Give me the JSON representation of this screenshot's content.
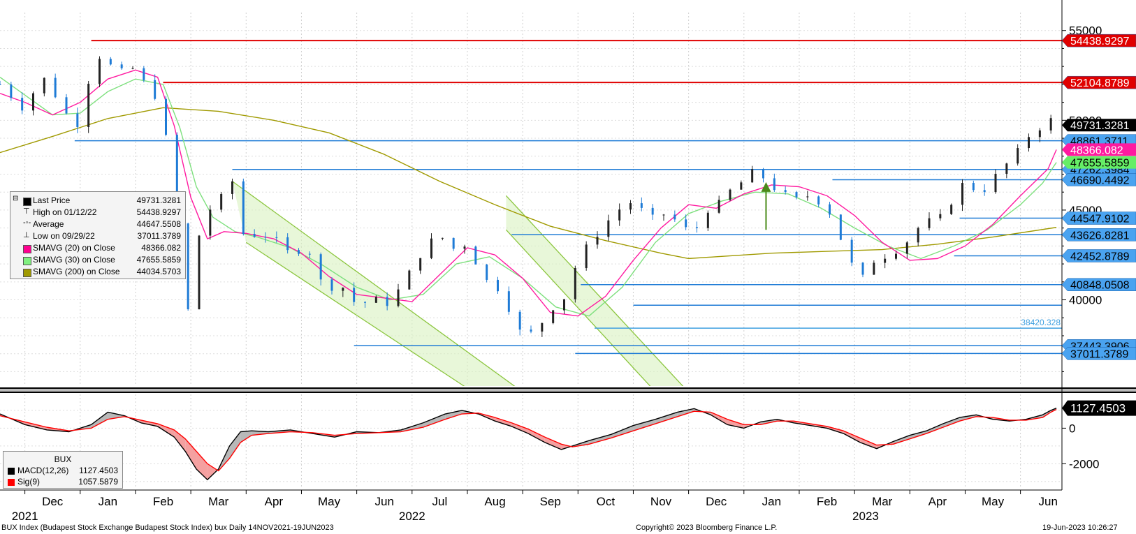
{
  "footer": {
    "left": "BUX Index (Budapest Stock Exchange Budapest Stock Index) bux  Daily 14NOV2021-19JUN2023",
    "center": "Copyright© 2023 Bloomberg Finance L.P.",
    "right": "19-Jun-2023 10:26:27"
  },
  "legend": [
    {
      "label": "Last Price",
      "value": "49731.3281",
      "swatch": "#000000",
      "marker": "box"
    },
    {
      "label": "High on 01/12/22",
      "value": "54438.9297",
      "swatch": "",
      "marker": "high"
    },
    {
      "label": "Average",
      "value": "44647.5508",
      "swatch": "",
      "marker": "avg"
    },
    {
      "label": "Low on 09/29/22",
      "value": "37011.3789",
      "swatch": "",
      "marker": "low"
    },
    {
      "label": "SMAVG (20)  on Close",
      "value": "48366.082",
      "swatch": "#ff0090",
      "marker": "box"
    },
    {
      "label": "SMAVG (30)  on Close",
      "value": "47655.5859",
      "swatch": "#80f080",
      "marker": "box"
    },
    {
      "label": "SMAVG (200)  on Close",
      "value": "44034.5703",
      "swatch": "#a09a00",
      "marker": "box"
    }
  ],
  "macd_legend": {
    "title": "BUX",
    "items": [
      {
        "label": "MACD(12,26)",
        "value": "1127.4503",
        "swatch": "#000000"
      },
      {
        "label": "Sig(9)",
        "value": "1057.5879",
        "swatch": "#ff0000"
      }
    ]
  },
  "chart_data": [
    {
      "type": "candlestick",
      "title": "",
      "x_labels": [
        "Dec",
        "Jan",
        "Feb",
        "Mar",
        "Apr",
        "May",
        "Jun",
        "Jul",
        "Aug",
        "Sep",
        "Oct",
        "Nov",
        "Dec",
        "Jan",
        "Feb",
        "Mar",
        "Apr",
        "May",
        "Jun"
      ],
      "x_label_pos": [
        0.5,
        1.5,
        2.5,
        3.5,
        4.5,
        5.5,
        6.5,
        7.5,
        8.5,
        9.5,
        10.5,
        11.5,
        12.5,
        13.5,
        14.5,
        15.5,
        16.5,
        17.5,
        18.5
      ],
      "year_labels": [
        {
          "label": "2021",
          "pos": 0.0
        },
        {
          "label": "2022",
          "pos": 7.0
        },
        {
          "label": "2023",
          "pos": 15.2
        }
      ],
      "x_range": [
        -0.45,
        18.75
      ],
      "y_ticks": [
        40000,
        45000,
        50000,
        55000
      ],
      "y_tick_labels": [
        "40000",
        "45000",
        "50000",
        "55000"
      ],
      "ylim": [
        35200,
        56000
      ],
      "grid": true,
      "close_series": {
        "x": [
          -0.45,
          0.0,
          0.3,
          0.6,
          0.9,
          1.0,
          1.2,
          1.4,
          1.5,
          1.7,
          1.9,
          2.1,
          2.3,
          2.45,
          2.6,
          2.75,
          2.85,
          2.95,
          3.05,
          3.15,
          3.3,
          3.45,
          3.6,
          3.75,
          3.9,
          4.05,
          4.2,
          4.5,
          4.8,
          5.1,
          5.4,
          5.7,
          6.0,
          6.3,
          6.6,
          6.9,
          7.2,
          7.5,
          7.7,
          7.9,
          8.1,
          8.3,
          8.5,
          8.7,
          8.9,
          9.1,
          9.3,
          9.5,
          9.7,
          9.85,
          10.0,
          10.2,
          10.4,
          10.6,
          10.8,
          11.0,
          11.2,
          11.4,
          11.6,
          11.8,
          12.0,
          12.2,
          12.4,
          12.6,
          12.8,
          13.0,
          13.2,
          13.4,
          13.6,
          13.8,
          14.0,
          14.2,
          14.4,
          14.6,
          14.8,
          15.0,
          15.1,
          15.25,
          15.4,
          15.6,
          15.8,
          16.0,
          16.2,
          16.4,
          16.6,
          16.8,
          17.0,
          17.2,
          17.4,
          17.6,
          17.8,
          18.0,
          18.2,
          18.4,
          18.55,
          18.65
        ],
        "y": [
          52000,
          50600,
          52500,
          51200,
          49500,
          50200,
          52900,
          53800,
          53200,
          52500,
          53100,
          52200,
          51800,
          50600,
          48200,
          44200,
          40500,
          39400,
          41200,
          43600,
          45200,
          44800,
          46100,
          46600,
          43900,
          43300,
          43800,
          43400,
          42500,
          43100,
          40600,
          40900,
          39700,
          40000,
          39800,
          41200,
          42800,
          43700,
          42700,
          43300,
          42500,
          41100,
          40900,
          40000,
          38300,
          38000,
          38500,
          39600,
          39700,
          41000,
          42200,
          43100,
          43900,
          44600,
          45200,
          45500,
          44800,
          44400,
          44900,
          44300,
          43800,
          44100,
          45400,
          45300,
          46300,
          46600,
          47200,
          46700,
          46100,
          45700,
          45500,
          45900,
          45400,
          44700,
          43000,
          41600,
          40900,
          41800,
          42400,
          42500,
          42900,
          43400,
          44200,
          44400,
          44600,
          45800,
          46600,
          46100,
          46200,
          47100,
          47700,
          48400,
          49400,
          49700,
          50000,
          49730
        ]
      },
      "sma20": {
        "x": [
          -0.45,
          0.0,
          0.5,
          1.0,
          1.5,
          2.0,
          2.4,
          2.7,
          3.0,
          3.3,
          3.6,
          4.0,
          4.5,
          5.0,
          5.5,
          6.0,
          6.5,
          7.0,
          7.5,
          8.0,
          8.5,
          9.0,
          9.5,
          10.0,
          10.5,
          11.0,
          11.5,
          12.0,
          12.5,
          13.0,
          13.5,
          14.0,
          14.5,
          15.0,
          15.5,
          16.0,
          16.5,
          17.0,
          17.5,
          18.0,
          18.5,
          18.65
        ],
        "y": [
          51500,
          51000,
          50300,
          51000,
          52300,
          52800,
          52400,
          49700,
          45700,
          43400,
          43800,
          43700,
          43400,
          42600,
          41300,
          40300,
          40100,
          39900,
          41400,
          42900,
          42500,
          41200,
          39300,
          39100,
          40200,
          42200,
          44000,
          45300,
          45100,
          45900,
          46400,
          46300,
          45800,
          44700,
          43200,
          42200,
          42300,
          43000,
          44200,
          45800,
          47300,
          48366
        ]
      },
      "sma30": {
        "x": [
          -0.45,
          0.5,
          1.0,
          1.5,
          2.0,
          2.5,
          2.8,
          3.1,
          3.4,
          3.8,
          4.2,
          4.8,
          5.4,
          6.0,
          6.6,
          7.2,
          7.8,
          8.4,
          9.0,
          9.6,
          10.2,
          10.8,
          11.4,
          12.0,
          12.6,
          13.2,
          13.8,
          14.4,
          15.0,
          15.6,
          16.2,
          16.8,
          17.4,
          18.0,
          18.4,
          18.65
        ],
        "y": [
          52400,
          50300,
          50400,
          51600,
          52300,
          52000,
          49600,
          46300,
          44600,
          43800,
          43500,
          42900,
          41900,
          40700,
          40000,
          40300,
          42000,
          42400,
          41200,
          39600,
          39100,
          40700,
          43200,
          44800,
          45500,
          46000,
          45900,
          45100,
          44000,
          43000,
          42300,
          43000,
          43900,
          45300,
          46500,
          47656
        ]
      },
      "sma200": {
        "x": [
          -0.45,
          0.5,
          1.5,
          2.5,
          3.5,
          4.5,
          5.5,
          6.5,
          7.5,
          8.5,
          9.5,
          10.5,
          11.5,
          12.0,
          12.5,
          13.5,
          14.5,
          15.5,
          16.5,
          17.5,
          18.65
        ],
        "y": [
          48200,
          49100,
          50100,
          50700,
          50500,
          50000,
          49300,
          48100,
          46600,
          45300,
          44100,
          43300,
          42600,
          42300,
          42400,
          42600,
          42700,
          42800,
          43100,
          43500,
          44035
        ]
      },
      "horizontal_levels": [
        {
          "value": 54438.9297,
          "label": "54438.9297",
          "color": "#e00000",
          "from_x": 1.2
        },
        {
          "value": 52104.8789,
          "label": "52104.8789",
          "color": "#e00000",
          "from_x": 2.5
        },
        {
          "value": 48861.3711,
          "label": "48861.3711",
          "color": "#1e7bd6",
          "from_x": 0.9
        },
        {
          "value": 47262.3984,
          "label": "47262.3984",
          "color": "#1e7bd6",
          "from_x": 3.75
        },
        {
          "value": 46690.4492,
          "label": "46690.4492",
          "color": "#1e7bd6",
          "from_x": 14.6
        },
        {
          "value": 44547.9102,
          "label": "44547.9102",
          "color": "#1e7bd6",
          "from_x": 16.9
        },
        {
          "value": 43626.8281,
          "label": "43626.8281",
          "color": "#1e7bd6",
          "from_x": 8.8
        },
        {
          "value": 42452.8789,
          "label": "42452.8789",
          "color": "#1e7bd6",
          "from_x": 16.8
        },
        {
          "value": 40848.0508,
          "label": "40848.0508",
          "color": "#1e7bd6",
          "from_x": 10.05
        },
        {
          "value": 39700,
          "label": "",
          "color": "#1e7bd6",
          "from_x": 11.0
        },
        {
          "value": 38420.328,
          "label": "38420.328",
          "color": "#40a0e0",
          "from_x": 10.3,
          "plain": true
        },
        {
          "value": 37443.3906,
          "label": "37443.3906",
          "color": "#1e7bd6",
          "from_x": 5.95
        },
        {
          "value": 37011.3789,
          "label": "37011.3789",
          "color": "#1e7bd6",
          "from_x": 9.95
        }
      ],
      "price_tags": [
        {
          "value": 49731.3281,
          "label": "49731.3281",
          "bg": "#000000",
          "fg": "#ffffff"
        },
        {
          "value": 48366.082,
          "label": "48366.082",
          "bg": "#ff1aa0",
          "fg": "#ffffff"
        },
        {
          "value": 47655.5859,
          "label": "47655.5859",
          "bg": "#66ee66",
          "fg": "#000000"
        }
      ],
      "channels": [
        {
          "upper": [
            [
              3.75,
              46600
            ],
            [
              10.55,
              31400
            ]
          ],
          "lower": [
            [
              4.0,
              43200
            ],
            [
              10.3,
              30400
            ]
          ]
        },
        {
          "upper": [
            [
              8.7,
              45800
            ],
            [
              12.95,
              31700
            ]
          ],
          "lower": [
            [
              8.7,
              43900
            ],
            [
              12.35,
              31700
            ]
          ]
        }
      ],
      "arrow": {
        "x": 13.4,
        "from": 43900,
        "to": 46400,
        "color": "#4a8a1a"
      }
    },
    {
      "type": "line",
      "title": "BUX",
      "y_ticks": [
        0,
        -2000
      ],
      "y_tick_labels": [
        "0",
        "-2000"
      ],
      "ylim": [
        -3400,
        1900
      ],
      "series": [
        {
          "name": "MACD(12,26)",
          "color": "#000000",
          "x": [
            -0.45,
            0.0,
            0.4,
            0.8,
            1.2,
            1.5,
            1.8,
            2.1,
            2.4,
            2.7,
            2.9,
            3.1,
            3.3,
            3.5,
            3.7,
            3.9,
            4.1,
            4.4,
            4.8,
            5.2,
            5.6,
            6.0,
            6.4,
            6.8,
            7.2,
            7.6,
            7.9,
            8.2,
            8.5,
            8.8,
            9.1,
            9.4,
            9.7,
            9.9,
            10.2,
            10.6,
            11.0,
            11.4,
            11.8,
            12.1,
            12.4,
            12.7,
            13.0,
            13.3,
            13.6,
            13.9,
            14.2,
            14.5,
            14.8,
            15.1,
            15.4,
            15.7,
            16.0,
            16.3,
            16.6,
            16.9,
            17.2,
            17.5,
            17.8,
            18.1,
            18.4,
            18.55,
            18.65
          ],
          "y": [
            800,
            200,
            -100,
            -200,
            200,
            900,
            700,
            300,
            100,
            -500,
            -1300,
            -2300,
            -2900,
            -2300,
            -1000,
            -200,
            -150,
            -200,
            -100,
            -300,
            -500,
            -200,
            -250,
            -100,
            300,
            800,
            1000,
            800,
            400,
            100,
            -300,
            -800,
            -1200,
            -1000,
            -700,
            -350,
            150,
            500,
            900,
            1100,
            750,
            200,
            0,
            350,
            500,
            300,
            150,
            0,
            -300,
            -800,
            -1150,
            -750,
            -400,
            -150,
            250,
            600,
            750,
            500,
            400,
            500,
            750,
            1000,
            1127
          ]
        },
        {
          "name": "Sig(9)",
          "color": "#ff0000",
          "x": [
            -0.45,
            0.0,
            0.4,
            0.8,
            1.2,
            1.5,
            1.8,
            2.1,
            2.4,
            2.7,
            2.9,
            3.1,
            3.3,
            3.5,
            3.7,
            3.9,
            4.1,
            4.4,
            4.8,
            5.2,
            5.6,
            6.0,
            6.4,
            6.8,
            7.2,
            7.6,
            7.9,
            8.2,
            8.5,
            8.8,
            9.1,
            9.4,
            9.7,
            9.9,
            10.2,
            10.6,
            11.0,
            11.4,
            11.8,
            12.1,
            12.4,
            12.7,
            13.0,
            13.3,
            13.6,
            13.9,
            14.2,
            14.5,
            14.8,
            15.1,
            15.4,
            15.7,
            16.0,
            16.3,
            16.6,
            16.9,
            17.2,
            17.5,
            17.8,
            18.1,
            18.4,
            18.55,
            18.65
          ],
          "y": [
            700,
            350,
            50,
            -150,
            0,
            500,
            650,
            450,
            250,
            -100,
            -600,
            -1300,
            -2000,
            -2400,
            -1700,
            -800,
            -400,
            -300,
            -200,
            -250,
            -400,
            -300,
            -250,
            -200,
            50,
            500,
            800,
            850,
            600,
            300,
            -50,
            -500,
            -900,
            -1050,
            -900,
            -550,
            -150,
            250,
            650,
            950,
            900,
            500,
            200,
            200,
            400,
            400,
            250,
            100,
            -150,
            -550,
            -950,
            -900,
            -600,
            -300,
            50,
            400,
            650,
            600,
            450,
            450,
            600,
            900,
            1058
          ]
        }
      ],
      "price_tags": [
        {
          "value": 1127.4503,
          "label": "1127.4503",
          "bg": "#000000",
          "fg": "#ffffff"
        }
      ]
    }
  ]
}
